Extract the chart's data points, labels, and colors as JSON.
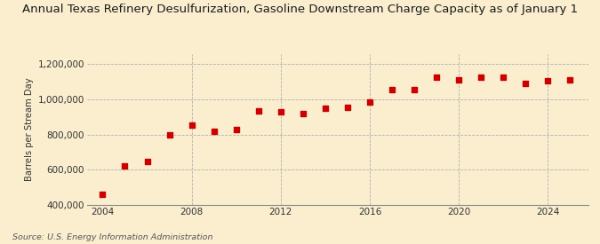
{
  "title": "Annual Texas Refinery Desulfurization, Gasoline Downstream Charge Capacity as of January 1",
  "ylabel": "Barrels per Stream Day",
  "source": "Source: U.S. Energy Information Administration",
  "background_color": "#faeecf",
  "years": [
    2004,
    2005,
    2006,
    2007,
    2008,
    2009,
    2010,
    2011,
    2012,
    2013,
    2014,
    2015,
    2016,
    2017,
    2018,
    2019,
    2020,
    2021,
    2022,
    2023,
    2024,
    2025
  ],
  "values": [
    462000,
    620000,
    645000,
    800000,
    855000,
    820000,
    830000,
    935000,
    930000,
    920000,
    950000,
    955000,
    985000,
    1055000,
    1055000,
    1125000,
    1110000,
    1125000,
    1125000,
    1090000,
    1105000,
    1110000
  ],
  "dot_color": "#cc0000",
  "dot_size": 18,
  "ylim": [
    400000,
    1260000
  ],
  "yticks": [
    400000,
    600000,
    800000,
    1000000,
    1200000
  ],
  "xticks": [
    2004,
    2008,
    2012,
    2016,
    2020,
    2024
  ],
  "grid_color": "#aaaaaa",
  "vgrid_years": [
    2008,
    2012,
    2016,
    2020,
    2024
  ],
  "xlim": [
    2003.3,
    2025.8
  ],
  "title_fontsize": 9.5,
  "ylabel_fontsize": 7.2,
  "tick_fontsize": 7.5,
  "source_fontsize": 6.8
}
